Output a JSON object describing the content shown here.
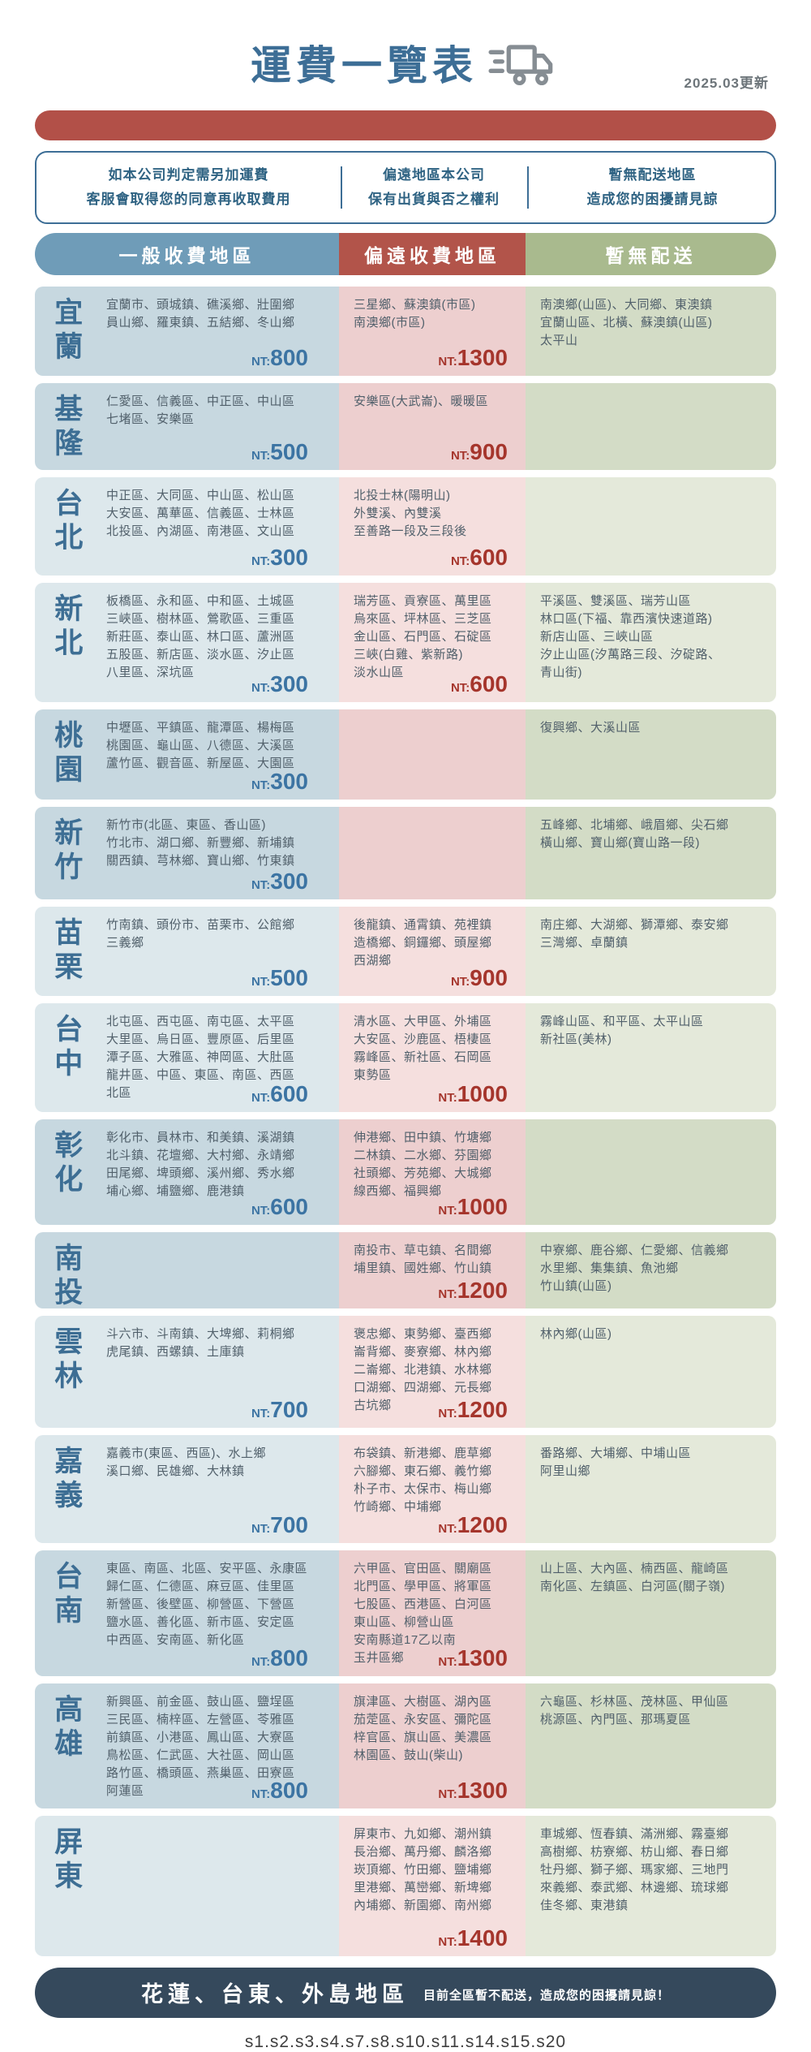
{
  "header": {
    "title": "運費一覽表",
    "updated": "2025.03更新",
    "notes": [
      {
        "lines": [
          "如本公司判定需另加運費",
          "客服會取得您的同意再收取費用"
        ]
      },
      {
        "lines": [
          "偏遠地區本公司",
          "保有出貨與否之權利"
        ]
      },
      {
        "lines": [
          "暫無配送地區",
          "造成您的困擾請見諒"
        ]
      }
    ]
  },
  "columns": {
    "general": {
      "label": "一般收費地區",
      "color": "#6f9cb8"
    },
    "remote": {
      "label": "偏遠收費地區",
      "color": "#b2544a"
    },
    "none": {
      "label": "暫無配送",
      "color": "#a9ba8e"
    }
  },
  "price_prefix": "NT:",
  "palette": {
    "title_blue": "#3d6e96",
    "bar_red": "#b25048",
    "footer_navy": "#35495c",
    "price_blue": "#3c74a3",
    "price_red": "#a5352c",
    "row_general_dark": "#c7d8e0",
    "row_remote_dark": "#edcfcf",
    "row_none_dark": "#d3dcc6",
    "row_general_light": "#dde8ec",
    "row_remote_light": "#f5dfde",
    "row_none_light": "#e4e9da"
  },
  "rows": [
    {
      "region": "宜蘭",
      "general": {
        "lines": [
          "宜蘭市、頭城鎮、礁溪鄉、壯圍鄉",
          "員山鄉、羅東鎮、五結鄉、冬山鄉"
        ],
        "price": "800"
      },
      "remote": {
        "lines": [
          "三星鄉、蘇澳鎮(市區)",
          "南澳鄉(市區)"
        ],
        "price": "1300"
      },
      "none": {
        "lines": [
          "南澳鄉(山區)、大同鄉、東澳鎮",
          "宜蘭山區、北橫、蘇澳鎮(山區)",
          "太平山"
        ]
      }
    },
    {
      "region": "基隆",
      "general": {
        "lines": [
          "仁愛區、信義區、中正區、中山區",
          "七堵區、安樂區"
        ],
        "price": "500"
      },
      "remote": {
        "lines": [
          "安樂區(大武崙)、暖暖區"
        ],
        "price": "900"
      },
      "none": {
        "lines": []
      }
    },
    {
      "region": "台北",
      "general": {
        "lines": [
          "中正區、大同區、中山區、松山區",
          "大安區、萬華區、信義區、士林區",
          "北投區、內湖區、南港區、文山區"
        ],
        "price": "300"
      },
      "remote": {
        "lines": [
          "北投士林(陽明山)",
          "外雙溪、內雙溪",
          "至善路一段及三段後"
        ],
        "price": "600"
      },
      "none": {
        "lines": []
      }
    },
    {
      "region": "新北",
      "general": {
        "lines": [
          "板橋區、永和區、中和區、土城區",
          "三峽區、樹林區、鶯歌區、三重區",
          "新莊區、泰山區、林口區、蘆洲區",
          "五股區、新店區、淡水區、汐止區",
          "八里區、深坑區"
        ],
        "price": "300"
      },
      "remote": {
        "lines": [
          "瑞芳區、貢寮區、萬里區",
          "烏來區、坪林區、三芝區",
          "金山區、石門區、石碇區",
          "三峽(白雞、紫新路)",
          "淡水山區"
        ],
        "price": "600"
      },
      "none": {
        "lines": [
          "平溪區、雙溪區、瑞芳山區",
          "林口區(下福、靠西濱快速道路)",
          "新店山區、三峽山區",
          "汐止山區(汐萬路三段、汐碇路、",
          "青山街)"
        ]
      }
    },
    {
      "region": "桃園",
      "general": {
        "lines": [
          "中壢區、平鎮區、龍潭區、楊梅區",
          "桃園區、龜山區、八德區、大溪區",
          "蘆竹區、觀音區、新屋區、大園區"
        ],
        "price": "300"
      },
      "remote": {
        "lines": []
      },
      "none": {
        "lines": [
          "復興鄉、大溪山區"
        ]
      }
    },
    {
      "region": "新竹",
      "general": {
        "lines": [
          "新竹市(北區、東區、香山區)",
          "竹北市、湖口鄉、新豐鄉、新埔鎮",
          "關西鎮、芎林鄉、寶山鄉、竹東鎮"
        ],
        "price": "300"
      },
      "remote": {
        "lines": []
      },
      "none": {
        "lines": [
          "五峰鄉、北埔鄉、峨眉鄉、尖石鄉",
          "橫山鄉、寶山鄉(寶山路一段)"
        ]
      }
    },
    {
      "region": "苗栗",
      "general": {
        "lines": [
          "竹南鎮、頭份市、苗栗市、公館鄉",
          "三義鄉"
        ],
        "price": "500"
      },
      "remote": {
        "lines": [
          "後龍鎮、通霄鎮、苑裡鎮",
          "造橋鄉、銅鑼鄉、頭屋鄉",
          "西湖鄉"
        ],
        "price": "900"
      },
      "none": {
        "lines": [
          "南庄鄉、大湖鄉、獅潭鄉、泰安鄉",
          "三灣鄉、卓蘭鎮"
        ]
      }
    },
    {
      "region": "台中",
      "general": {
        "lines": [
          "北屯區、西屯區、南屯區、太平區",
          "大里區、烏日區、豐原區、后里區",
          "潭子區、大雅區、神岡區、大肚區",
          "龍井區、中區、東區、南區、西區",
          "北區"
        ],
        "price": "600"
      },
      "remote": {
        "lines": [
          "清水區、大甲區、外埔區",
          "大安區、沙鹿區、梧棲區",
          "霧峰區、新社區、石岡區",
          "東勢區"
        ],
        "price": "1000"
      },
      "none": {
        "lines": [
          "霧峰山區、和平區、太平山區",
          "新社區(美林)"
        ]
      }
    },
    {
      "region": "彰化",
      "general": {
        "lines": [
          "彰化市、員林市、和美鎮、溪湖鎮",
          "北斗鎮、花壇鄉、大村鄉、永靖鄉",
          "田尾鄉、埤頭鄉、溪州鄉、秀水鄉",
          "埔心鄉、埔鹽鄉、鹿港鎮"
        ],
        "price": "600"
      },
      "remote": {
        "lines": [
          "伸港鄉、田中鎮、竹塘鄉",
          "二林鎮、二水鄉、芬園鄉",
          "社頭鄉、芳苑鄉、大城鄉",
          "線西鄉、福興鄉"
        ],
        "price": "1000"
      },
      "none": {
        "lines": []
      }
    },
    {
      "region": "南投",
      "general": {
        "lines": []
      },
      "remote": {
        "lines": [
          "南投市、草屯鎮、名間鄉",
          "埔里鎮、國姓鄉、竹山鎮"
        ],
        "price": "1200"
      },
      "none": {
        "lines": [
          "中寮鄉、鹿谷鄉、仁愛鄉、信義鄉",
          "水里鄉、集集鎮、魚池鄉",
          "竹山鎮(山區)"
        ]
      }
    },
    {
      "region": "雲林",
      "general": {
        "lines": [
          "斗六市、斗南鎮、大埤鄉、莉桐鄉",
          "虎尾鎮、西螺鎮、土庫鎮"
        ],
        "price": "700"
      },
      "remote": {
        "lines": [
          "褒忠鄉、東勢鄉、臺西鄉",
          "崙背鄉、麥寮鄉、林內鄉",
          "二崙鄉、北港鎮、水林鄉",
          "口湖鄉、四湖鄉、元長鄉",
          "古坑鄉"
        ],
        "price": "1200"
      },
      "none": {
        "lines": [
          "林內鄉(山區)"
        ]
      }
    },
    {
      "region": "嘉義",
      "general": {
        "lines": [
          "嘉義市(東區、西區)、水上鄉",
          "溪口鄉、民雄鄉、大林鎮"
        ],
        "price": "700"
      },
      "remote": {
        "lines": [
          "布袋鎮、新港鄉、鹿草鄉",
          "六腳鄉、東石鄉、義竹鄉",
          "朴子市、太保市、梅山鄉",
          "竹崎鄉、中埔鄉"
        ],
        "price": "1200"
      },
      "none": {
        "lines": [
          "番路鄉、大埔鄉、中埔山區",
          "阿里山鄉"
        ]
      }
    },
    {
      "region": "台南",
      "general": {
        "lines": [
          "東區、南區、北區、安平區、永康區",
          "歸仁區、仁德區、麻豆區、佳里區",
          "新營區、後壁區、柳營區、下營區",
          "鹽水區、善化區、新市區、安定區",
          "中西區、安南區、新化區"
        ],
        "price": "800"
      },
      "remote": {
        "lines": [
          "六甲區、官田區、關廟區",
          "北門區、學甲區、將軍區",
          "七股區、西港區、白河區",
          "東山區、柳營山區",
          "安南縣道17乙以南",
          "玉井區鄉"
        ],
        "price": "1300"
      },
      "none": {
        "lines": [
          "山上區、大內區、楠西區、龍崎區",
          "南化區、左鎮區、白河區(關子嶺)"
        ]
      }
    },
    {
      "region": "高雄",
      "general": {
        "lines": [
          "新興區、前金區、鼓山區、鹽埕區",
          "三民區、楠梓區、左營區、苓雅區",
          "前鎮區、小港區、鳳山區、大寮區",
          "鳥松區、仁武區、大社區、岡山區",
          "路竹區、橋頭區、燕巢區、田寮區",
          "阿蓮區"
        ],
        "price": "800"
      },
      "remote": {
        "lines": [
          "旗津區、大樹區、湖內區",
          "茄萣區、永安區、彌陀區",
          "梓官區、旗山區、美濃區",
          "林園區、鼓山(柴山)"
        ],
        "price": "1300"
      },
      "none": {
        "lines": [
          "六龜區、杉林區、茂林區、甲仙區",
          "桃源區、內門區、那瑪夏區"
        ]
      }
    },
    {
      "region": "屏東",
      "general": {
        "lines": []
      },
      "remote": {
        "lines": [
          "屏東市、九如鄉、潮州鎮",
          "長治鄉、萬丹鄉、麟洛鄉",
          "崁頂鄉、竹田鄉、鹽埔鄉",
          "里港鄉、萬巒鄉、新埤鄉",
          "內埔鄉、新園鄉、南州鄉"
        ],
        "price": "1400"
      },
      "none": {
        "lines": [
          "車城鄉、恆春鎮、滿洲鄉、霧臺鄉",
          "高樹鄉、枋寮鄉、枋山鄉、春日鄉",
          "牡丹鄉、獅子鄉、瑪家鄉、三地門",
          "來義鄉、泰武鄉、林邊鄉、琉球鄉",
          "佳冬鄉、東港鎮"
        ]
      }
    }
  ],
  "footer": {
    "title": "花蓮、台東、外島地區",
    "note": "目前全區暫不配送，造成您的困擾請見諒！"
  },
  "bottom_code": "s1.s2.s3.s4.s7.s8.s10.s11.s14.s15.s20"
}
